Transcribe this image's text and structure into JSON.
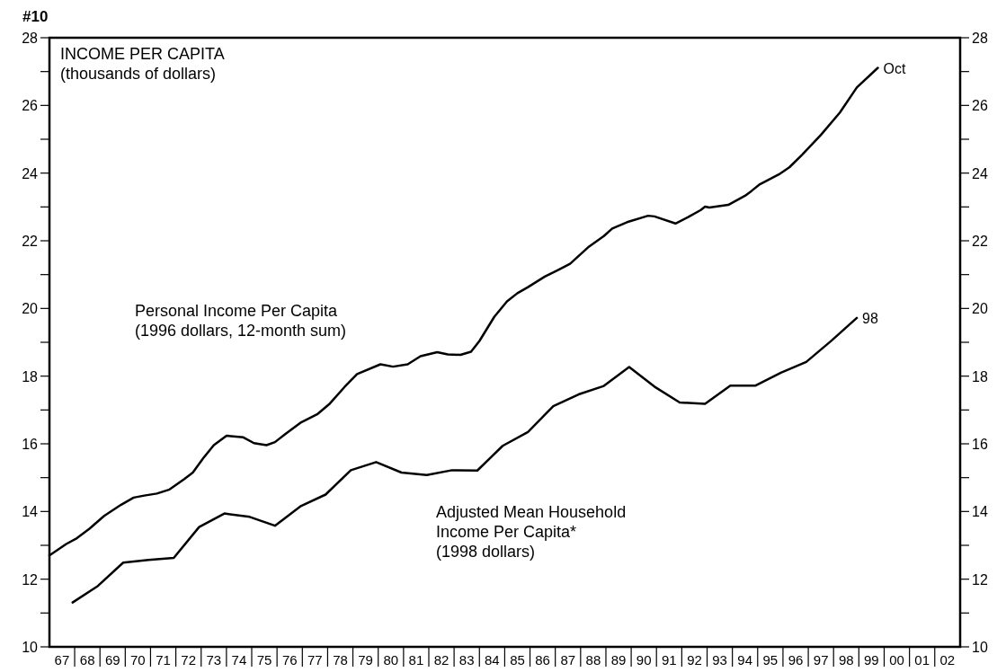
{
  "chart_data": {
    "type": "line",
    "title": "INCOME PER CAPITA",
    "subtitle": "(thousands of dollars)",
    "annotations": [
      "#10",
      {
        "text": "Oct",
        "x": "1999-10",
        "y": 27.11
      },
      {
        "text": "98",
        "x": "1998-12",
        "y": 19.72
      }
    ],
    "xlim": [
      "1967-01",
      "2003-01"
    ],
    "xticks": [
      {
        "value": "1967-07",
        "label": "67"
      },
      {
        "value": "1968-07",
        "label": "68"
      },
      {
        "value": "1969-07",
        "label": "69"
      },
      {
        "value": "1970-07",
        "label": "70"
      },
      {
        "value": "1971-07",
        "label": "71"
      },
      {
        "value": "1972-07",
        "label": "72"
      },
      {
        "value": "1973-07",
        "label": "73"
      },
      {
        "value": "1974-07",
        "label": "74"
      },
      {
        "value": "1975-07",
        "label": "75"
      },
      {
        "value": "1976-07",
        "label": "76"
      },
      {
        "value": "1977-07",
        "label": "77"
      },
      {
        "value": "1978-07",
        "label": "78"
      },
      {
        "value": "1979-07",
        "label": "79"
      },
      {
        "value": "1980-07",
        "label": "80"
      },
      {
        "value": "1981-07",
        "label": "81"
      },
      {
        "value": "1982-07",
        "label": "82"
      },
      {
        "value": "1983-07",
        "label": "83"
      },
      {
        "value": "1984-07",
        "label": "84"
      },
      {
        "value": "1985-07",
        "label": "85"
      },
      {
        "value": "1986-07",
        "label": "86"
      },
      {
        "value": "1987-07",
        "label": "87"
      },
      {
        "value": "1988-07",
        "label": "88"
      },
      {
        "value": "1989-07",
        "label": "89"
      },
      {
        "value": "1990-07",
        "label": "90"
      },
      {
        "value": "1991-07",
        "label": "91"
      },
      {
        "value": "1992-07",
        "label": "92"
      },
      {
        "value": "1993-07",
        "label": "93"
      },
      {
        "value": "1994-07",
        "label": "94"
      },
      {
        "value": "1995-07",
        "label": "95"
      },
      {
        "value": "1996-07",
        "label": "96"
      },
      {
        "value": "1997-07",
        "label": "97"
      },
      {
        "value": "1998-07",
        "label": "98"
      },
      {
        "value": "1999-07",
        "label": "99"
      },
      {
        "value": "2000-07",
        "label": "00"
      },
      {
        "value": "2001-07",
        "label": "01"
      },
      {
        "value": "2002-07",
        "label": "02"
      }
    ],
    "ylim": [
      10,
      28
    ],
    "yticks": [
      10,
      {
        "value": 11,
        "label": null
      },
      12,
      {
        "value": 13,
        "label": null
      },
      14,
      {
        "value": 15,
        "label": null
      },
      16,
      {
        "value": 17,
        "label": null
      },
      18,
      {
        "value": 19,
        "label": null
      },
      20,
      {
        "value": 21,
        "label": null
      },
      22,
      {
        "value": 23,
        "label": null
      },
      24,
      {
        "value": 25,
        "label": null
      },
      26,
      {
        "value": 27,
        "label": null
      },
      28
    ],
    "y2lim": [
      10,
      28
    ],
    "y2ticks": [
      10,
      {
        "value": 11,
        "label": null
      },
      12,
      {
        "value": 13,
        "label": null
      },
      14,
      {
        "value": 15,
        "label": null
      },
      16,
      {
        "value": 17,
        "label": null
      },
      18,
      {
        "value": 19,
        "label": null
      },
      20,
      {
        "value": 21,
        "label": null
      },
      22,
      {
        "value": 23,
        "label": null
      },
      24,
      {
        "value": 25,
        "label": null
      },
      26,
      {
        "value": 27,
        "label": null
      },
      28
    ],
    "grid": false,
    "line_style": "solid",
    "series": [
      {
        "name": "Personal Income Per Capita\n(1996 dollars, 12-month sum)",
        "color": "#000000",
        "x": [
          "1967-01",
          "1967-09",
          "1968-02",
          "1968-08",
          "1969-03",
          "1969-11",
          "1970-05",
          "1970-10",
          "1971-04",
          "1971-10",
          "1972-05",
          "1972-09",
          "1973-02",
          "1973-07",
          "1974-01",
          "1974-09",
          "1975-02",
          "1975-08",
          "1975-12",
          "1976-05",
          "1976-12",
          "1977-08",
          "1978-02",
          "1978-09",
          "1979-03",
          "1980-02",
          "1980-08",
          "1981-03",
          "1981-09",
          "1982-05",
          "1982-10",
          "1983-04",
          "1983-09",
          "1984-01",
          "1984-08",
          "1985-02",
          "1985-07",
          "1985-12",
          "1986-08",
          "1987-02",
          "1987-08",
          "1988-05",
          "1988-12",
          "1989-04",
          "1989-11",
          "1990-09",
          "1990-12",
          "1991-10",
          "1992-04",
          "1992-10",
          "1992-12",
          "1993-02",
          "1993-11",
          "1994-07",
          "1994-10",
          "1995-02",
          "1995-11",
          "1996-04",
          "1996-10",
          "1997-07",
          "1998-04",
          "1998-12",
          "1999-10"
        ],
        "values": [
          12.7,
          13.04,
          13.21,
          13.49,
          13.87,
          14.2,
          14.41,
          14.47,
          14.53,
          14.65,
          14.96,
          15.15,
          15.58,
          15.96,
          16.24,
          16.19,
          16.02,
          15.96,
          16.05,
          16.29,
          16.62,
          16.87,
          17.19,
          17.68,
          18.06,
          18.35,
          18.28,
          18.35,
          18.59,
          18.71,
          18.64,
          18.63,
          18.72,
          19.04,
          19.75,
          20.21,
          20.45,
          20.63,
          20.94,
          21.13,
          21.32,
          21.83,
          22.14,
          22.36,
          22.55,
          22.74,
          22.72,
          22.51,
          22.7,
          22.91,
          23.01,
          22.98,
          23.06,
          23.33,
          23.47,
          23.67,
          23.96,
          24.17,
          24.54,
          25.13,
          25.79,
          26.53,
          27.11
        ]
      },
      {
        "name": "Adjusted Mean Household\nIncome Per Capita*\n(1998 dollars)",
        "color": "#000000",
        "x": [
          "1967-12",
          "1968-12",
          "1969-12",
          "1970-12",
          "1971-12",
          "1972-12",
          "1973-12",
          "1974-12",
          "1975-12",
          "1976-12",
          "1977-12",
          "1978-12",
          "1979-12",
          "1980-12",
          "1981-12",
          "1982-12",
          "1983-12",
          "1984-12",
          "1985-12",
          "1986-12",
          "1987-12",
          "1988-12",
          "1989-12",
          "1990-12",
          "1991-12",
          "1992-12",
          "1993-12",
          "1994-12",
          "1995-12",
          "1996-12",
          "1997-12",
          "1998-12"
        ],
        "values": [
          11.31,
          11.8,
          12.49,
          12.57,
          12.63,
          13.54,
          13.94,
          13.84,
          13.58,
          14.15,
          14.5,
          15.22,
          15.46,
          15.15,
          15.08,
          15.22,
          15.21,
          15.94,
          16.35,
          17.11,
          17.46,
          17.71,
          18.27,
          17.69,
          17.22,
          17.18,
          17.72,
          17.72,
          18.1,
          18.42,
          19.05,
          19.72
        ]
      }
    ]
  }
}
